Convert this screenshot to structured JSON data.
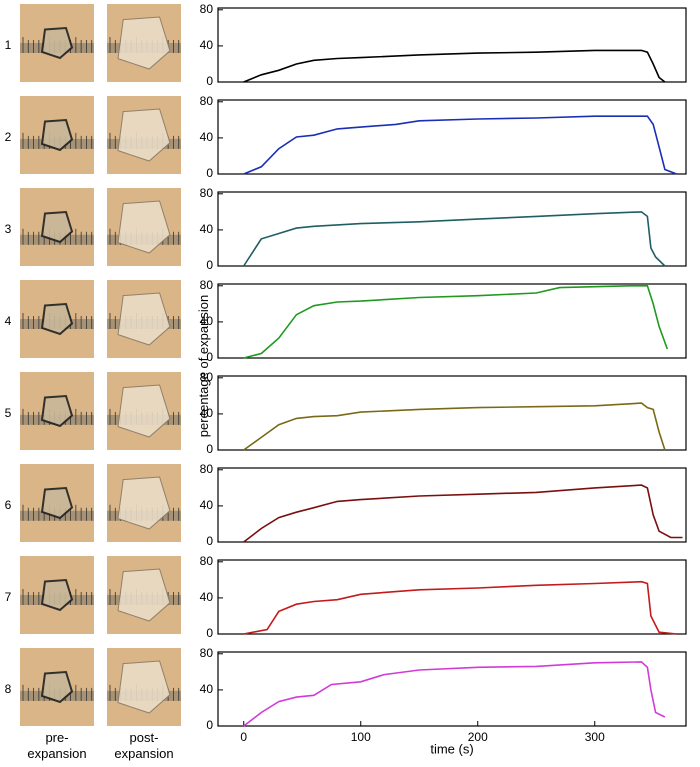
{
  "ylabel": "percentage of expansion",
  "xlabel": "time (s)",
  "column_labels": [
    "pre-\nexpansion",
    "post-\nexpansion"
  ],
  "chart_data": [
    {
      "type": "line",
      "label": "1",
      "color": "#000000",
      "xlim": [
        -22,
        378
      ],
      "ylim": [
        0,
        82
      ],
      "yticks": [
        0,
        40,
        80
      ],
      "x": [
        0,
        15,
        30,
        45,
        60,
        80,
        100,
        150,
        200,
        250,
        300,
        340,
        345,
        350,
        355,
        360
      ],
      "values": [
        0,
        8,
        13,
        20,
        24,
        26,
        27,
        30,
        32,
        33,
        35,
        35,
        33,
        20,
        5,
        0
      ]
    },
    {
      "type": "line",
      "label": "2",
      "color": "#1a2fb5",
      "xlim": [
        -22,
        378
      ],
      "ylim": [
        0,
        82
      ],
      "yticks": [
        0,
        40,
        80
      ],
      "x": [
        0,
        15,
        30,
        45,
        60,
        80,
        100,
        130,
        150,
        200,
        250,
        300,
        345,
        350,
        355,
        360,
        370
      ],
      "values": [
        0,
        8,
        28,
        41,
        43,
        50,
        52,
        55,
        59,
        61,
        62,
        64,
        64,
        55,
        30,
        5,
        0
      ]
    },
    {
      "type": "line",
      "label": "3",
      "color": "#1e5f63",
      "xlim": [
        -22,
        378
      ],
      "ylim": [
        0,
        82
      ],
      "yticks": [
        0,
        40,
        80
      ],
      "x": [
        0,
        15,
        30,
        45,
        60,
        100,
        150,
        200,
        250,
        300,
        340,
        345,
        348,
        352,
        360
      ],
      "values": [
        0,
        30,
        36,
        42,
        44,
        47,
        49,
        52,
        55,
        58,
        60,
        55,
        20,
        10,
        0
      ]
    },
    {
      "type": "line",
      "label": "4",
      "color": "#1f9a1f",
      "xlim": [
        -22,
        378
      ],
      "ylim": [
        0,
        82
      ],
      "yticks": [
        0,
        40,
        80
      ],
      "x": [
        0,
        15,
        30,
        45,
        60,
        80,
        100,
        150,
        200,
        250,
        270,
        300,
        330,
        345,
        350,
        355,
        362
      ],
      "values": [
        0,
        5,
        22,
        48,
        58,
        62,
        63,
        67,
        69,
        72,
        78,
        79,
        80,
        80,
        60,
        35,
        10
      ]
    },
    {
      "type": "line",
      "label": "5",
      "color": "#7a6a18",
      "xlim": [
        -22,
        378
      ],
      "ylim": [
        0,
        82
      ],
      "yticks": [
        0,
        40,
        80
      ],
      "x": [
        0,
        15,
        30,
        45,
        60,
        80,
        100,
        150,
        200,
        250,
        300,
        340,
        345,
        350,
        355,
        360
      ],
      "values": [
        0,
        14,
        28,
        35,
        37,
        38,
        42,
        45,
        47,
        48,
        49,
        52,
        47,
        45,
        20,
        0
      ]
    },
    {
      "type": "line",
      "label": "6",
      "color": "#7a0f0f",
      "xlim": [
        -22,
        378
      ],
      "ylim": [
        0,
        82
      ],
      "yticks": [
        0,
        40,
        80
      ],
      "x": [
        0,
        15,
        30,
        45,
        60,
        80,
        100,
        150,
        200,
        250,
        300,
        340,
        345,
        350,
        355,
        365,
        375
      ],
      "values": [
        0,
        15,
        27,
        33,
        38,
        45,
        47,
        51,
        53,
        55,
        60,
        63,
        60,
        30,
        12,
        5,
        5
      ]
    },
    {
      "type": "line",
      "label": "7",
      "color": "#c41a1a",
      "xlim": [
        -22,
        378
      ],
      "ylim": [
        0,
        82
      ],
      "yticks": [
        0,
        40,
        80
      ],
      "x": [
        0,
        20,
        30,
        45,
        60,
        80,
        100,
        150,
        200,
        250,
        300,
        340,
        345,
        348,
        355,
        370
      ],
      "values": [
        0,
        5,
        25,
        33,
        36,
        38,
        44,
        49,
        51,
        54,
        56,
        58,
        56,
        20,
        2,
        0
      ]
    },
    {
      "type": "line",
      "label": "8",
      "color": "#d23ad8",
      "xlim": [
        -22,
        378
      ],
      "ylim": [
        0,
        82
      ],
      "yticks": [
        0,
        40,
        80
      ],
      "xticks": [
        0,
        100,
        200,
        300
      ],
      "x": [
        0,
        15,
        30,
        45,
        60,
        75,
        100,
        120,
        150,
        200,
        250,
        300,
        340,
        345,
        348,
        352,
        360
      ],
      "values": [
        0,
        15,
        27,
        32,
        34,
        46,
        49,
        57,
        62,
        65,
        66,
        70,
        71,
        65,
        40,
        15,
        10
      ]
    }
  ]
}
